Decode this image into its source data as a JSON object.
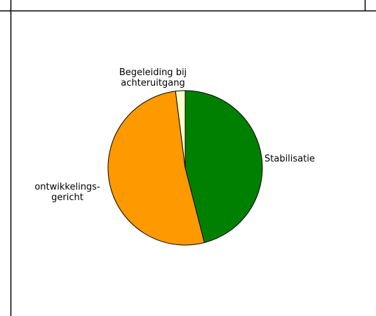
{
  "chart_data": {
    "type": "pie",
    "title": "",
    "categories": [
      "Stabilisatie",
      "ontwikkelingsgericht",
      "Begeleiding bij achteruitgang"
    ],
    "values": [
      46,
      52,
      2
    ],
    "colors": [
      "#008000",
      "#ff9900",
      "#ffffcc"
    ],
    "slice_labels": [
      [
        "Stabilisatie"
      ],
      [
        "ontwikkelings-",
        "gericht"
      ],
      [
        "Begeleiding bij",
        "achteruitgang"
      ]
    ],
    "legend": "none"
  }
}
